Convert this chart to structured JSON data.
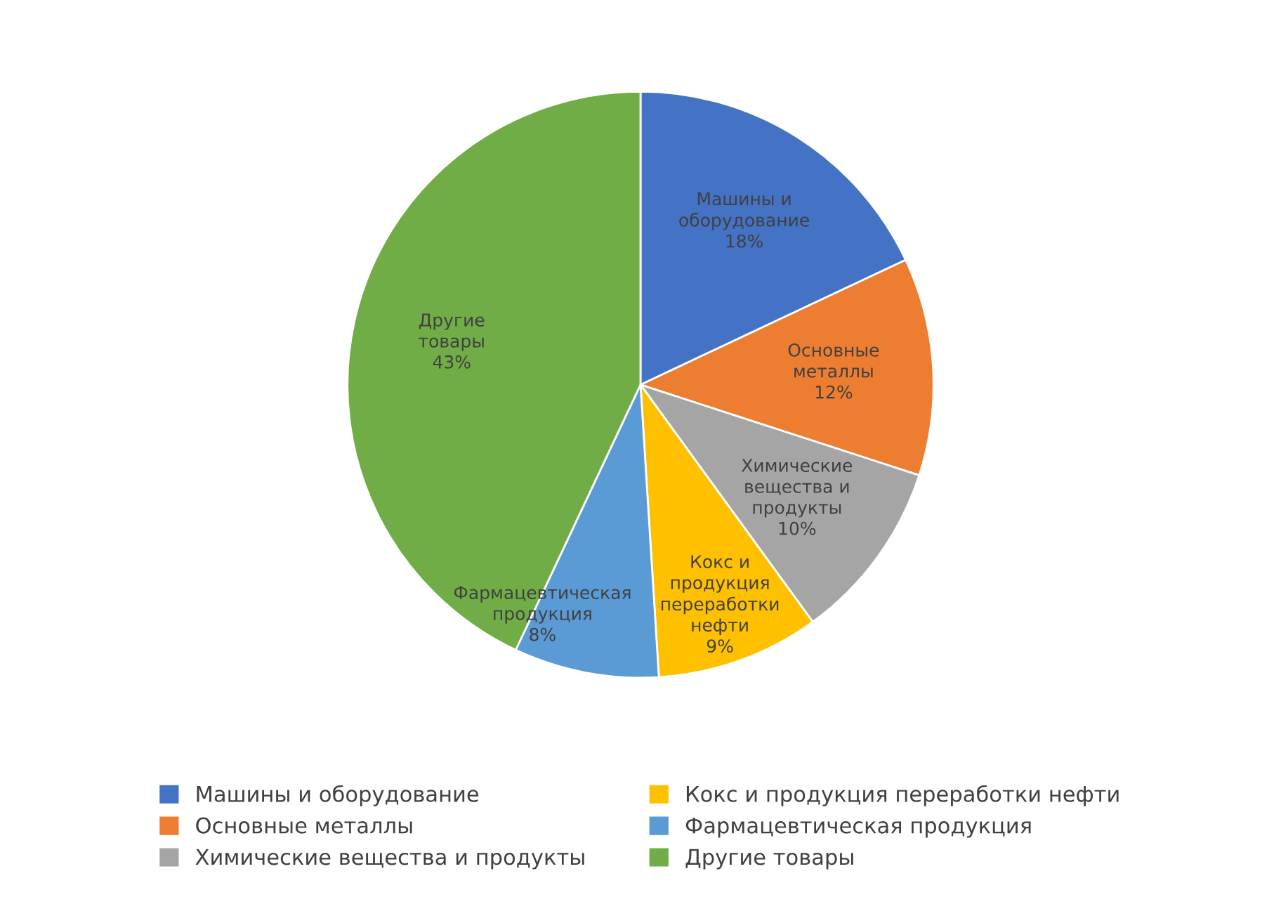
{
  "chart_data": {
    "type": "pie",
    "categories": [
      "Машины и оборудование",
      "Основные металлы",
      "Химические вещества и продукты",
      "Кокс и продукция переработки нефти",
      "Фармацевтическая продукция",
      "Другие товары"
    ],
    "values": [
      18,
      12,
      10,
      9,
      8,
      43
    ],
    "value_labels": [
      "18%",
      "12%",
      "10%",
      "9%",
      "8%",
      "43%"
    ],
    "colors": [
      "#4472c4",
      "#ed7d31",
      "#a5a5a5",
      "#ffc000",
      "#5b9bd5",
      "#70ad47"
    ],
    "legend": "bottom"
  }
}
